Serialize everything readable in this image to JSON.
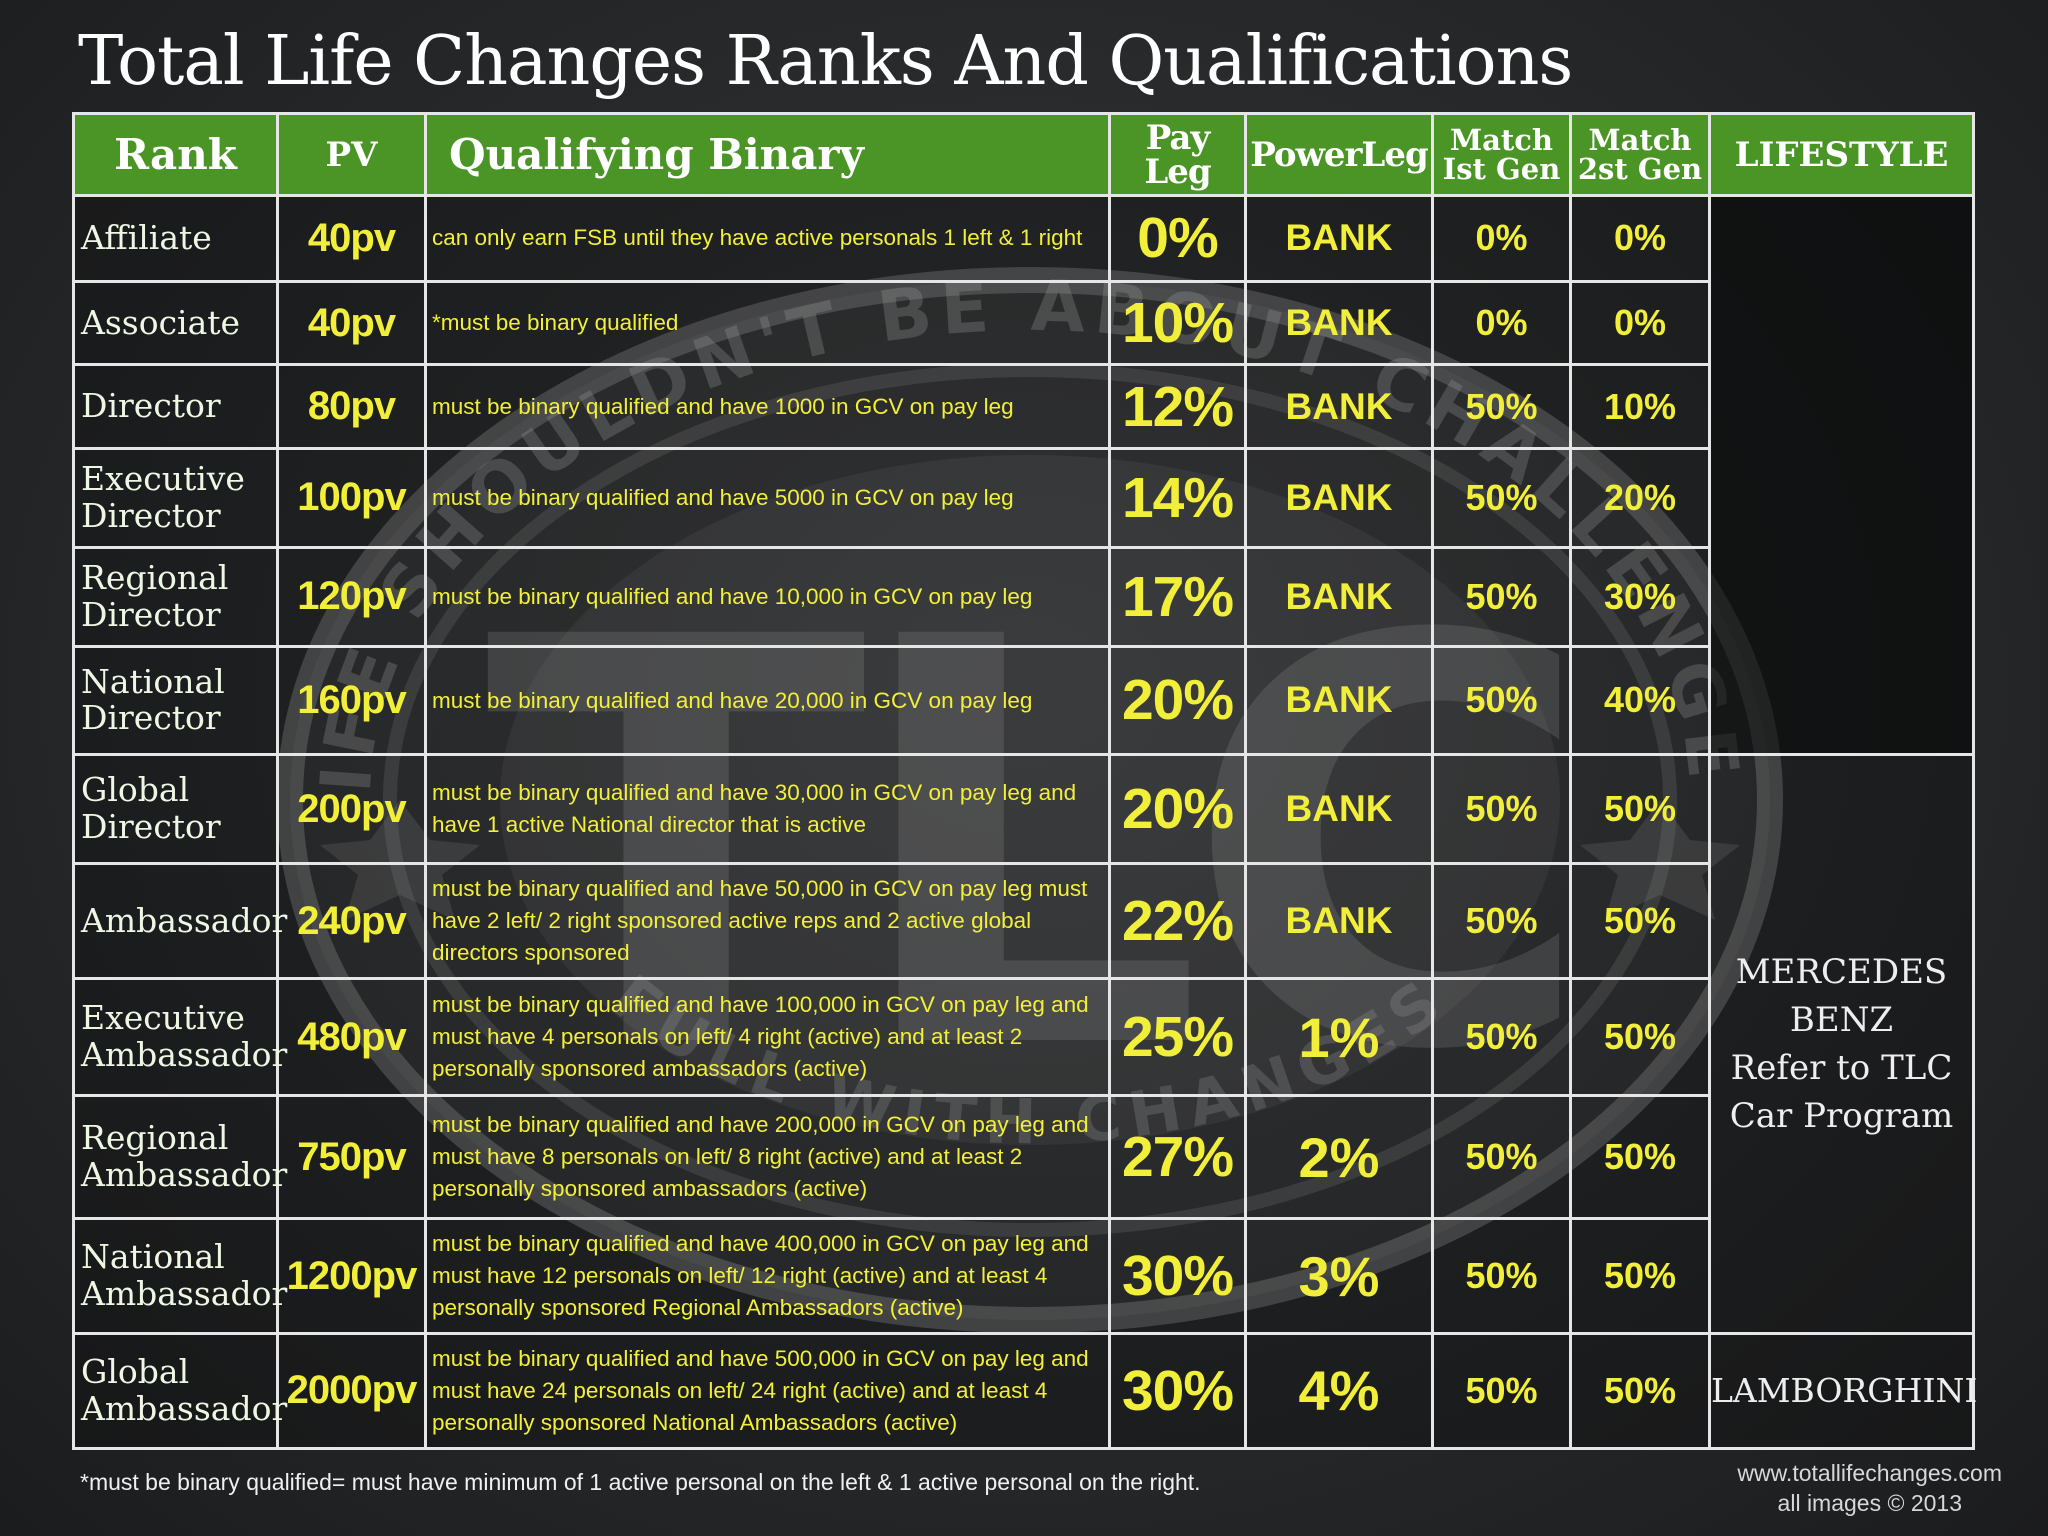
{
  "title": "Total Life Changes Ranks And Qualifications",
  "watermark": {
    "top_text": "LIFE SHOULDN'T BE ABOUT CHALLENGES",
    "bottom_text": "FULL WITH CHANGES",
    "logo": "TLC"
  },
  "headers": {
    "rank": "Rank",
    "pv": "PV",
    "qualifying_binary": "Qualifying Binary",
    "pay_leg": "Pay Leg",
    "power_leg": "PowerLeg",
    "match_1": [
      "Match",
      "Ist Gen"
    ],
    "match_2": [
      "Match",
      "2st Gen"
    ],
    "lifestyle": "LIFESTYLE"
  },
  "rows": [
    {
      "rank": [
        "Affiliate"
      ],
      "pv": "40pv",
      "qualifying": "can only earn FSB until they have active personals 1 left & 1 right",
      "pay_leg": "0%",
      "power_leg": "BANK",
      "match_1": "0%",
      "match_2": "0%"
    },
    {
      "rank": [
        "Associate"
      ],
      "pv": "40pv",
      "qualifying": "*must be binary qualified",
      "pay_leg": "10%",
      "power_leg": "BANK",
      "match_1": "0%",
      "match_2": "0%"
    },
    {
      "rank": [
        "Director"
      ],
      "pv": "80pv",
      "qualifying": "must be binary qualified and have  1000 in GCV on pay leg",
      "pay_leg": "12%",
      "power_leg": "BANK",
      "match_1": "50%",
      "match_2": "10%"
    },
    {
      "rank": [
        "Executive",
        "Director"
      ],
      "pv": "100pv",
      "qualifying": "must be binary qualified and have 5000 in GCV on pay leg",
      "pay_leg": "14%",
      "power_leg": "BANK",
      "match_1": "50%",
      "match_2": "20%"
    },
    {
      "rank": [
        "Regional",
        "Director"
      ],
      "pv": "120pv",
      "qualifying": "must be binary qualified and have 10,000 in GCV on pay leg",
      "pay_leg": "17%",
      "power_leg": "BANK",
      "match_1": "50%",
      "match_2": "30%"
    },
    {
      "rank": [
        "National",
        "Director"
      ],
      "pv": "160pv",
      "qualifying": "must be binary qualified and have 20,000 in GCV on pay leg",
      "pay_leg": "20%",
      "power_leg": "BANK",
      "match_1": "50%",
      "match_2": "40%"
    },
    {
      "rank": [
        "Global",
        "Director"
      ],
      "pv": "200pv",
      "qualifying": "must be binary qualified and have 30,000 in GCV on  pay leg and have 1 active National director that is active",
      "pay_leg": "20%",
      "power_leg": "BANK",
      "match_1": "50%",
      "match_2": "50%"
    },
    {
      "rank": [
        "Ambassador"
      ],
      "pv": "240pv",
      "qualifying": "must be binary qualified and have 50,000 in GCV on pay leg must have 2 left/ 2 right sponsored active reps and 2 active global directors sponsored",
      "pay_leg": "22%",
      "power_leg": "BANK",
      "match_1": "50%",
      "match_2": "50%"
    },
    {
      "rank": [
        "Executive",
        "Ambassador"
      ],
      "pv": "480pv",
      "qualifying": "must be binary qualified and have 100,000 in GCV on pay leg and must have 4 personals on left/ 4 right (active) and at least 2 personally sponsored ambassadors (active)",
      "pay_leg": "25%",
      "power_leg": "1%",
      "match_1": "50%",
      "match_2": "50%"
    },
    {
      "rank": [
        "Regional",
        "Ambassador"
      ],
      "pv": "750pv",
      "qualifying": "must be binary qualified and have 200,000 in GCV on pay leg and must have 8 personals on left/ 8 right (active) and at least  2 personally sponsored ambassadors (active)",
      "pay_leg": "27%",
      "power_leg": "2%",
      "match_1": "50%",
      "match_2": "50%"
    },
    {
      "rank": [
        "National",
        "Ambassador"
      ],
      "pv": "1200pv",
      "qualifying": "must be binary qualified and have 400,000 in GCV on pay leg and must have 12 personals on left/ 12 right (active) and at least 4 personally sponsored Regional Ambassadors (active)",
      "pay_leg": "30%",
      "power_leg": "3%",
      "match_1": "50%",
      "match_2": "50%"
    },
    {
      "rank": [
        "Global",
        "Ambassador"
      ],
      "pv": "2000pv",
      "qualifying": "must be binary qualified and have 500,000 in GCV on pay leg and must have 24 personals on left/ 24 right (active) and at least 4 personally sponsored National Ambassadors (active)",
      "pay_leg": "30%",
      "power_leg": "4%",
      "match_1": "50%",
      "match_2": "50%"
    }
  ],
  "lifestyle": {
    "car_program": [
      "MERCEDES",
      "BENZ",
      "Refer to TLC",
      "Car Program"
    ],
    "top_tier": "LAMBORGHINI"
  },
  "footnote": "*must be binary qualified= must have minimum of 1 active personal on the left & 1 active personal on the right.",
  "website": "www.totallifechanges.com",
  "copyright": "all images © 2013",
  "colors": {
    "header_green": "#4b9527",
    "value_yellow": "#f2ef3a",
    "grid_line": "#e6e6e6",
    "background": "#2a2c2e"
  }
}
